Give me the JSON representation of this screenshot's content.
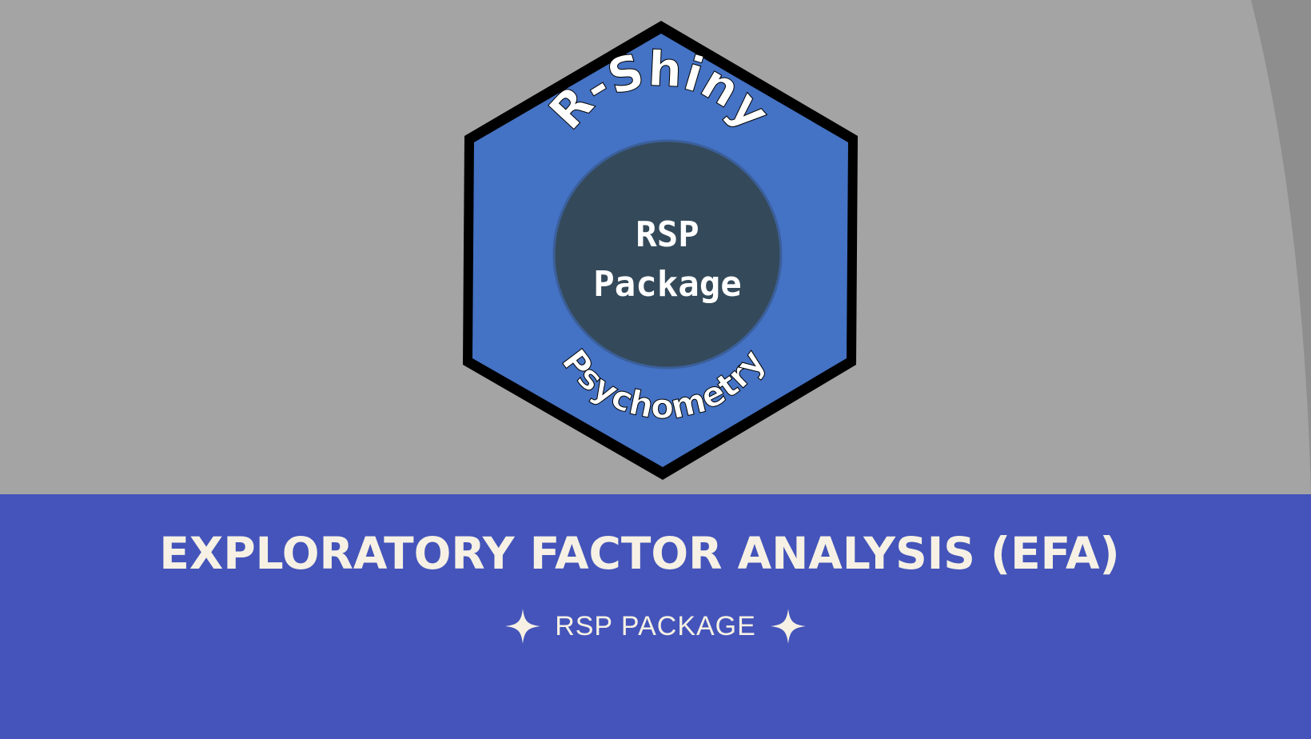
{
  "logo": {
    "top_arc_text": "R-Shiny",
    "center_line1": "RSP",
    "center_line2": "Package",
    "bottom_arc_text": "Psychometry"
  },
  "slide": {
    "title": "EXPLORATORY FACTOR ANALYSIS (EFA)",
    "subtitle": "RSP PACKAGE"
  },
  "icons": {
    "left_decoration": "four-point-star-icon",
    "right_decoration": "four-point-star-icon"
  },
  "colors": {
    "background_gray": "#a4a4a4",
    "arc_gray": "#8e8e8e",
    "band_blue": "#4454ba",
    "hex_fill": "#4472c4",
    "hex_border": "#000000",
    "circle_fill": "#344a5a",
    "text_cream": "#f6f1e4"
  }
}
